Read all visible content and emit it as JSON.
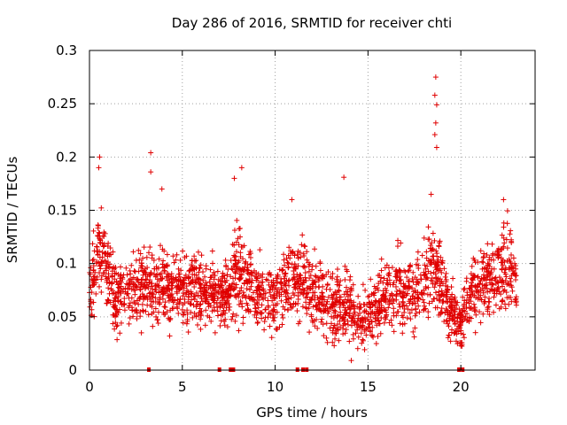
{
  "chart_data": {
    "type": "scatter",
    "title": "Day 286 of 2016, SRMTID for receiver chti",
    "xlabel": "GPS time / hours",
    "ylabel": "SRMTID / TECUs",
    "xlim": [
      0,
      24
    ],
    "ylim": [
      0,
      0.3
    ],
    "x_ticks": [
      0,
      5,
      10,
      15,
      20
    ],
    "x_tick_labels": [
      "0",
      "5",
      "10",
      "15",
      "20"
    ],
    "y_ticks": [
      0,
      0.05,
      0.1,
      0.15,
      0.2,
      0.25,
      0.3
    ],
    "y_tick_labels": [
      "0",
      "0.05",
      "0.1",
      "0.15",
      "0.2",
      "0.25",
      "0.3"
    ],
    "grid": true,
    "marker": "plus",
    "color": "#e00000",
    "baseline_markers_x": [
      3.2,
      7.0,
      7.6,
      7.75,
      11.2,
      11.5,
      11.7,
      19.9,
      20.1
    ],
    "density_profile": [
      {
        "x": 0.0,
        "center": 0.075,
        "spread": 0.03
      },
      {
        "x": 0.5,
        "center": 0.11,
        "spread": 0.035
      },
      {
        "x": 1.0,
        "center": 0.09,
        "spread": 0.035
      },
      {
        "x": 1.5,
        "center": 0.065,
        "spread": 0.03
      },
      {
        "x": 2.0,
        "center": 0.075,
        "spread": 0.025
      },
      {
        "x": 3.0,
        "center": 0.08,
        "spread": 0.03
      },
      {
        "x": 3.5,
        "center": 0.075,
        "spread": 0.03
      },
      {
        "x": 4.5,
        "center": 0.075,
        "spread": 0.03
      },
      {
        "x": 5.5,
        "center": 0.08,
        "spread": 0.03
      },
      {
        "x": 6.5,
        "center": 0.07,
        "spread": 0.025
      },
      {
        "x": 7.5,
        "center": 0.075,
        "spread": 0.03
      },
      {
        "x": 8.0,
        "center": 0.095,
        "spread": 0.04
      },
      {
        "x": 9.0,
        "center": 0.075,
        "spread": 0.03
      },
      {
        "x": 10.0,
        "center": 0.065,
        "spread": 0.03
      },
      {
        "x": 11.0,
        "center": 0.085,
        "spread": 0.03
      },
      {
        "x": 12.0,
        "center": 0.075,
        "spread": 0.03
      },
      {
        "x": 13.0,
        "center": 0.06,
        "spread": 0.03
      },
      {
        "x": 14.0,
        "center": 0.06,
        "spread": 0.03
      },
      {
        "x": 14.5,
        "center": 0.045,
        "spread": 0.02
      },
      {
        "x": 15.5,
        "center": 0.06,
        "spread": 0.025
      },
      {
        "x": 16.5,
        "center": 0.075,
        "spread": 0.03
      },
      {
        "x": 17.5,
        "center": 0.07,
        "spread": 0.03
      },
      {
        "x": 18.5,
        "center": 0.1,
        "spread": 0.035
      },
      {
        "x": 19.5,
        "center": 0.055,
        "spread": 0.025
      },
      {
        "x": 20.0,
        "center": 0.04,
        "spread": 0.02
      },
      {
        "x": 20.5,
        "center": 0.075,
        "spread": 0.03
      },
      {
        "x": 21.5,
        "center": 0.085,
        "spread": 0.035
      },
      {
        "x": 22.5,
        "center": 0.1,
        "spread": 0.04
      },
      {
        "x": 23.0,
        "center": 0.08,
        "spread": 0.03
      }
    ],
    "x_range_of_points": [
      0.0,
      23.0
    ],
    "highlight_points": [
      {
        "x": 0.55,
        "y": 0.2
      },
      {
        "x": 0.5,
        "y": 0.19
      },
      {
        "x": 3.3,
        "y": 0.204
      },
      {
        "x": 3.3,
        "y": 0.186
      },
      {
        "x": 3.9,
        "y": 0.17
      },
      {
        "x": 8.2,
        "y": 0.19
      },
      {
        "x": 7.8,
        "y": 0.18
      },
      {
        "x": 13.7,
        "y": 0.181
      },
      {
        "x": 18.65,
        "y": 0.275
      },
      {
        "x": 18.6,
        "y": 0.258
      },
      {
        "x": 18.7,
        "y": 0.249
      },
      {
        "x": 18.65,
        "y": 0.232
      },
      {
        "x": 18.6,
        "y": 0.221
      },
      {
        "x": 18.7,
        "y": 0.209
      },
      {
        "x": 18.4,
        "y": 0.165
      },
      {
        "x": 22.3,
        "y": 0.16
      },
      {
        "x": 10.9,
        "y": 0.16
      },
      {
        "x": 14.1,
        "y": 0.009
      }
    ]
  }
}
